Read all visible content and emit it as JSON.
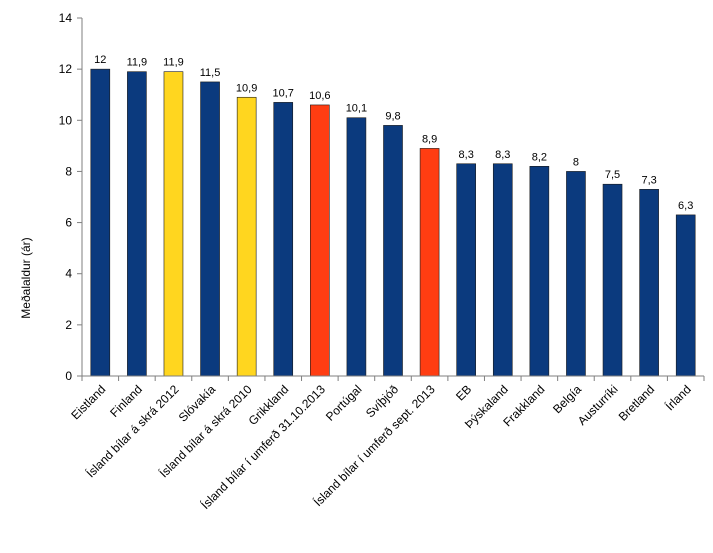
{
  "chart_data": {
    "type": "bar",
    "ylabel": "Meðalaldur (ár)",
    "xlabel": "",
    "ylim": [
      0,
      14
    ],
    "yticks": [
      "0",
      "2",
      "4",
      "6",
      "8",
      "10",
      "12",
      "14"
    ],
    "grid": false,
    "legend": "none",
    "colors": {
      "blue": "#0b3a7e",
      "yellow": "#ffd61f",
      "red": "#ff3d12",
      "axis": "#7f7f7f"
    },
    "categories": [
      "Eistland",
      "Finland",
      "Ísland bílar á skrá 2012",
      "Slóvakía",
      "Ísland bílar á skrá 2010",
      "Grikkland",
      "Ísland bílar í umferð 31.10.2013",
      "Portúgal",
      "Svíþjóð",
      "Ísland bílar í umferð sept. 2013",
      "EB",
      "Þýskaland",
      "Frakkland",
      "Belgía",
      "Austurríki",
      "Bretland",
      "Írland"
    ],
    "values": [
      12,
      11.9,
      11.9,
      11.5,
      10.9,
      10.7,
      10.6,
      10.1,
      9.8,
      8.9,
      8.3,
      8.3,
      8.2,
      8,
      7.5,
      7.3,
      6.3
    ],
    "value_labels": [
      "12",
      "11,9",
      "11,9",
      "11,5",
      "10,9",
      "10,7",
      "10,6",
      "10,1",
      "9,8",
      "8,9",
      "8,3",
      "8,3",
      "8,2",
      "8",
      "7,5",
      "7,3",
      "6,3"
    ],
    "bar_colors": [
      "blue",
      "blue",
      "yellow",
      "blue",
      "yellow",
      "blue",
      "red",
      "blue",
      "blue",
      "red",
      "blue",
      "blue",
      "blue",
      "blue",
      "blue",
      "blue",
      "blue"
    ]
  }
}
